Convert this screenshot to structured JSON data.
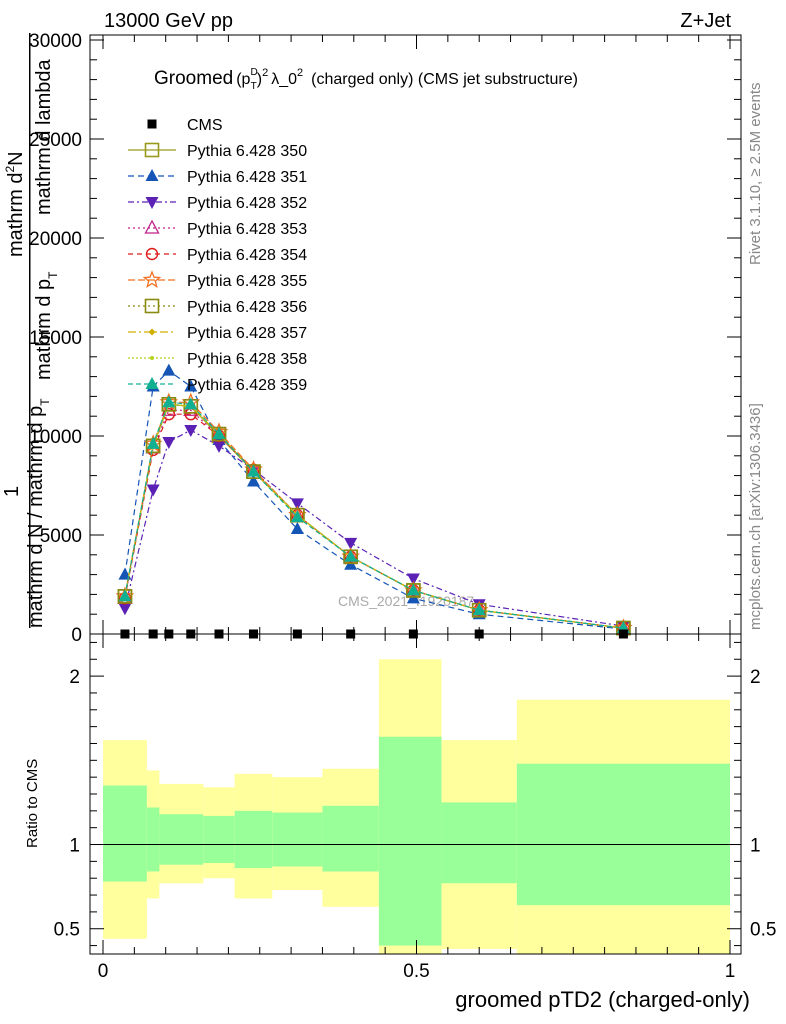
{
  "header": {
    "left": "13000 GeV pp",
    "right": "Z+Jet"
  },
  "side_labels": {
    "rivet": "Rivet 3.1.10, ≥ 2.5M events",
    "mcplots": "mcplots.cern.ch [arXiv:1306.3436]"
  },
  "watermark": "CMS_2021_I1920187",
  "colors": {
    "band_outer": "#ffff9e",
    "band_inner": "#99ff99",
    "data": "#000000"
  },
  "chart_data": [
    {
      "type": "line",
      "panel": "main",
      "title_parts": {
        "prefix": "Groomed",
        "base": "(p",
        "sup_inner": "D",
        "sub_inner": "T",
        "close": ")",
        "sup_outer": "2",
        "lambda": "λ_0",
        "lambda_sup": "2",
        "suffix": "(charged only) (CMS jet substructure)"
      },
      "ylabel_parts": {
        "one": "1",
        "numerator": "mathrm d",
        "numerator_sup": "2",
        "numerator_rest": "N",
        "denom_left": "mathrm d p",
        "denom_left_sub": "T",
        "denom_right": "mathrm d lambda",
        "bottom": "mathrm d N / mathrm d p",
        "bottom_sub": "T"
      },
      "xlim": [
        0,
        1
      ],
      "ylim": [
        0,
        30000
      ],
      "y_ticks": [
        0,
        5000,
        10000,
        15000,
        20000,
        25000,
        30000
      ],
      "y_tick_labels": [
        "0",
        "5000",
        "10000",
        "15000",
        "20000",
        "25000",
        "30000"
      ],
      "legend_position": "top-left",
      "x": [
        0.035,
        0.08,
        0.105,
        0.14,
        0.185,
        0.24,
        0.31,
        0.395,
        0.495,
        0.6,
        0.83
      ],
      "series": [
        {
          "name": "CMS",
          "color": "#000000",
          "marker": "square-filled",
          "dash": "none",
          "is_data": true,
          "values": [
            0,
            0,
            0,
            0,
            0,
            0,
            0,
            0,
            0,
            0,
            0
          ]
        },
        {
          "name": "Pythia 6.428 350",
          "color": "#9a9a1a",
          "marker": "square-open",
          "dash": "solid",
          "values": [
            1900,
            9500,
            11600,
            11500,
            10000,
            8200,
            6000,
            3900,
            2200,
            1200,
            300
          ]
        },
        {
          "name": "Pythia 6.428 351",
          "color": "#1555b5",
          "marker": "triangle-up-filled",
          "dash": "6,4",
          "values": [
            3000,
            12500,
            13300,
            12500,
            9800,
            7700,
            5300,
            3500,
            1800,
            1000,
            250
          ]
        },
        {
          "name": "Pythia 6.428 352",
          "color": "#5b21b5",
          "marker": "triangle-down-filled",
          "dash": "6,3,2,3",
          "values": [
            1300,
            7300,
            9700,
            10300,
            9500,
            8300,
            6600,
            4600,
            2800,
            1500,
            400
          ]
        },
        {
          "name": "Pythia 6.428 353",
          "color": "#c0208a",
          "marker": "triangle-up-open",
          "dash": "2,3",
          "values": [
            1800,
            9400,
            11300,
            11300,
            10000,
            8300,
            6000,
            3900,
            2200,
            1200,
            300
          ]
        },
        {
          "name": "Pythia 6.428 354",
          "color": "#dd1c1c",
          "marker": "circle-open",
          "dash": "5,4",
          "values": [
            1800,
            9300,
            11100,
            11100,
            10000,
            8300,
            6000,
            3900,
            2200,
            1200,
            300
          ]
        },
        {
          "name": "Pythia 6.428 355",
          "color": "#f07020",
          "marker": "star-open",
          "dash": "7,3",
          "values": [
            1900,
            9600,
            11700,
            11700,
            10200,
            8300,
            6000,
            3900,
            2200,
            1200,
            300
          ]
        },
        {
          "name": "Pythia 6.428 356",
          "color": "#8a8a10",
          "marker": "square-open",
          "dash": "2,3",
          "values": [
            1900,
            9500,
            11600,
            11500,
            10100,
            8200,
            6000,
            3900,
            2200,
            1200,
            300
          ]
        },
        {
          "name": "Pythia 6.428 357",
          "color": "#d0b000",
          "marker": "diamond-small",
          "dash": "8,3,2,3",
          "values": [
            1900,
            9500,
            11600,
            11500,
            10100,
            8200,
            6000,
            3900,
            2200,
            1200,
            300
          ]
        },
        {
          "name": "Pythia 6.428 358",
          "color": "#b8d020",
          "marker": "dot",
          "dash": "2,2",
          "values": [
            1900,
            9500,
            11600,
            11500,
            10100,
            8200,
            6000,
            3900,
            2200,
            1200,
            300
          ]
        },
        {
          "name": "Pythia 6.428 359",
          "color": "#10b090",
          "marker": "triangle-up-filled",
          "dash": "5,3",
          "values": [
            1900,
            9600,
            11700,
            11600,
            10100,
            8200,
            5900,
            3900,
            2200,
            1200,
            300
          ]
        }
      ]
    },
    {
      "type": "area",
      "panel": "ratio",
      "xlabel": "groomed pTD2 (charged-only)",
      "ylabel": "Ratio to CMS",
      "xlim": [
        0,
        1
      ],
      "ylim": [
        0.35,
        2.25
      ],
      "x_ticks": [
        0,
        0.5,
        1
      ],
      "x_tick_labels": [
        "0",
        "0.5",
        "1"
      ],
      "y_ticks": [
        0.5,
        1,
        2
      ],
      "y_tick_labels": [
        "0.5",
        "1",
        "2"
      ],
      "reference_line": 1,
      "bins": [
        {
          "x0": 0.0,
          "x1": 0.07,
          "inner": [
            0.78,
            1.35
          ],
          "outer": [
            0.44,
            1.62
          ]
        },
        {
          "x0": 0.07,
          "x1": 0.09,
          "inner": [
            0.84,
            1.22
          ],
          "outer": [
            0.68,
            1.44
          ]
        },
        {
          "x0": 0.09,
          "x1": 0.16,
          "inner": [
            0.88,
            1.18
          ],
          "outer": [
            0.77,
            1.36
          ]
        },
        {
          "x0": 0.16,
          "x1": 0.21,
          "inner": [
            0.89,
            1.17
          ],
          "outer": [
            0.8,
            1.34
          ]
        },
        {
          "x0": 0.21,
          "x1": 0.27,
          "inner": [
            0.86,
            1.2
          ],
          "outer": [
            0.68,
            1.42
          ]
        },
        {
          "x0": 0.27,
          "x1": 0.35,
          "inner": [
            0.87,
            1.19
          ],
          "outer": [
            0.73,
            1.4
          ]
        },
        {
          "x0": 0.35,
          "x1": 0.44,
          "inner": [
            0.84,
            1.23
          ],
          "outer": [
            0.63,
            1.45
          ]
        },
        {
          "x0": 0.44,
          "x1": 0.54,
          "inner": [
            0.4,
            1.64
          ],
          "outer": [
            0.35,
            2.1
          ]
        },
        {
          "x0": 0.54,
          "x1": 0.66,
          "inner": [
            0.77,
            1.25
          ],
          "outer": [
            0.38,
            1.62
          ]
        },
        {
          "x0": 0.66,
          "x1": 1.0,
          "inner": [
            0.64,
            1.48
          ],
          "outer": [
            0.35,
            1.86
          ]
        }
      ]
    }
  ]
}
